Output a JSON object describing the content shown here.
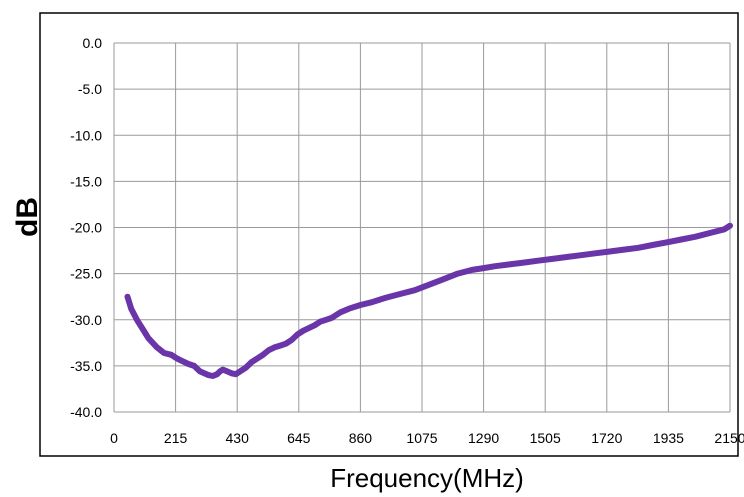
{
  "chart_data": {
    "type": "line",
    "title": "",
    "xlabel": "Frequency(MHz)",
    "ylabel": "dB",
    "xlim": [
      0,
      2150
    ],
    "ylim": [
      -40,
      0
    ],
    "x_ticks": [
      0,
      215,
      430,
      645,
      860,
      1075,
      1290,
      1505,
      1720,
      1935,
      2150
    ],
    "x_tick_labels": [
      "0",
      "215",
      "430",
      "645",
      "860",
      "1075",
      "1290",
      "1505",
      "1720",
      "1935",
      "2150"
    ],
    "y_ticks": [
      0,
      -5,
      -10,
      -15,
      -20,
      -25,
      -30,
      -35,
      -40
    ],
    "y_tick_labels": [
      "0.0",
      "-5.0",
      "-10.0",
      "-15.0",
      "-20.0",
      "-25.0",
      "-30.0",
      "-35.0",
      "-40.0"
    ],
    "grid": true,
    "legend": "none",
    "series": [
      {
        "color": "#6a35a8",
        "x": [
          47,
          60,
          80,
          100,
          120,
          150,
          175,
          200,
          220,
          240,
          260,
          280,
          300,
          315,
          330,
          345,
          360,
          370,
          380,
          395,
          410,
          425,
          440,
          460,
          480,
          500,
          520,
          540,
          560,
          580,
          600,
          620,
          640,
          660,
          680,
          700,
          720,
          740,
          760,
          790,
          820,
          860,
          900,
          950,
          1000,
          1050,
          1100,
          1150,
          1200,
          1250,
          1290,
          1330,
          1380,
          1430,
          1480,
          1530,
          1580,
          1630,
          1680,
          1730,
          1780,
          1830,
          1880,
          1930,
          1980,
          2030,
          2080,
          2130,
          2150
        ],
        "y": [
          -27.5,
          -28.8,
          -30,
          -31,
          -32,
          -33,
          -33.6,
          -33.8,
          -34.2,
          -34.5,
          -34.8,
          -35,
          -35.6,
          -35.8,
          -36,
          -36.1,
          -35.9,
          -35.6,
          -35.4,
          -35.6,
          -35.8,
          -35.9,
          -35.6,
          -35.2,
          -34.6,
          -34.2,
          -33.8,
          -33.3,
          -33,
          -32.8,
          -32.6,
          -32.2,
          -31.6,
          -31.2,
          -30.9,
          -30.6,
          -30.2,
          -30,
          -29.8,
          -29.2,
          -28.8,
          -28.4,
          -28.1,
          -27.6,
          -27.2,
          -26.8,
          -26.2,
          -25.6,
          -25,
          -24.6,
          -24.4,
          -24.2,
          -24,
          -23.8,
          -23.6,
          -23.4,
          -23.2,
          -23,
          -22.8,
          -22.6,
          -22.4,
          -22.2,
          -21.9,
          -21.6,
          -21.3,
          -21,
          -20.6,
          -20.2,
          -19.8
        ]
      }
    ]
  }
}
